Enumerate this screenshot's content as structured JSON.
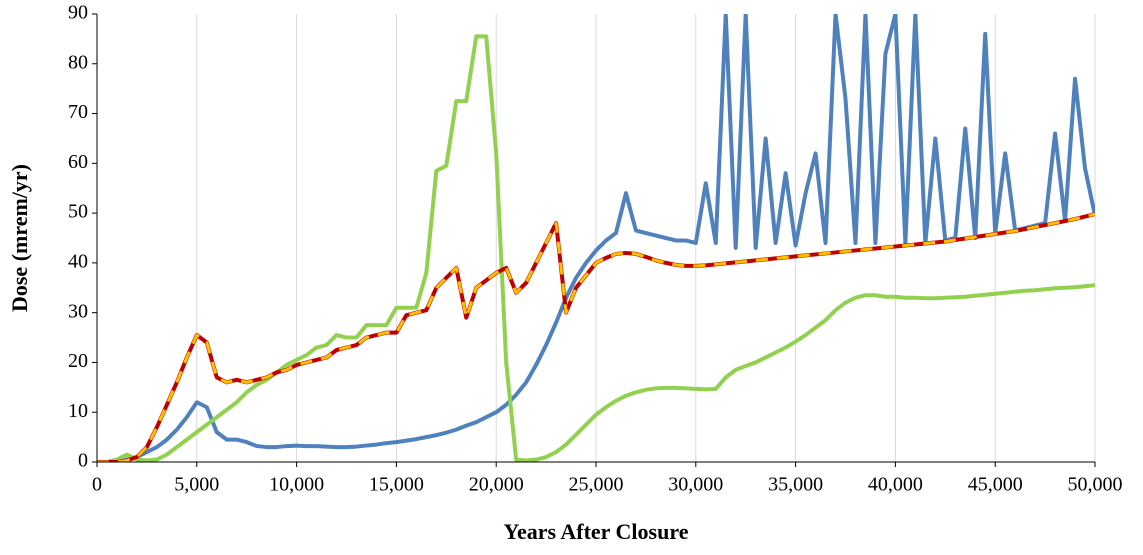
{
  "chart_data": {
    "type": "line",
    "xlabel": "Years After Closure",
    "ylabel": "Dose (mrem/yr)",
    "x": [
      0,
      500,
      1000,
      1500,
      2000,
      2500,
      3000,
      3500,
      4000,
      4500,
      5000,
      5500,
      6000,
      6500,
      7000,
      7500,
      8000,
      8500,
      9000,
      9500,
      10000,
      10500,
      11000,
      11500,
      12000,
      12500,
      13000,
      13500,
      14000,
      14500,
      15000,
      15500,
      16000,
      16500,
      17000,
      17500,
      18000,
      18500,
      19000,
      19500,
      20000,
      20500,
      21000,
      21500,
      22000,
      22500,
      23000,
      23500,
      24000,
      24500,
      25000,
      25500,
      26000,
      26500,
      27000,
      27500,
      28000,
      28500,
      29000,
      29500,
      30000,
      30500,
      31000,
      31500,
      32000,
      32500,
      33000,
      33500,
      34000,
      34500,
      35000,
      35500,
      36000,
      36500,
      37000,
      37500,
      38000,
      38500,
      39000,
      39500,
      40000,
      40500,
      41000,
      41500,
      42000,
      42500,
      43000,
      43500,
      44000,
      44500,
      45000,
      45500,
      46000,
      46500,
      47000,
      47500,
      48000,
      48500,
      49000,
      49500,
      50000
    ],
    "series": [
      {
        "color": "#4f81bd",
        "values": [
          0,
          0,
          0,
          0.5,
          1,
          2,
          3,
          4.5,
          6.5,
          9,
          12,
          11,
          6,
          4.5,
          4.5,
          4,
          3.2,
          3,
          3,
          3.2,
          3.3,
          3.2,
          3.2,
          3.1,
          3,
          3,
          3.1,
          3.3,
          3.5,
          3.8,
          4,
          4.3,
          4.6,
          5,
          5.4,
          5.9,
          6.5,
          7.3,
          8,
          9,
          10,
          11.5,
          13.5,
          16,
          19.5,
          23.5,
          28,
          33,
          37,
          40,
          42.5,
          44.5,
          46,
          54,
          46.5,
          46,
          45.5,
          45,
          44.5,
          44.5,
          44,
          56,
          44,
          90,
          43,
          90,
          43,
          65,
          44,
          58,
          43.5,
          54,
          62,
          44,
          90,
          73,
          44,
          90,
          44,
          82,
          90,
          44,
          90,
          44,
          65,
          44.5,
          45,
          67,
          45,
          86,
          46,
          62,
          46.5,
          47,
          47.5,
          48,
          66,
          48.5,
          77,
          59,
          49.5
        ]
      },
      {
        "color": "#92d050",
        "values": [
          0,
          0,
          0.5,
          1.5,
          0.5,
          0.3,
          0.5,
          1.5,
          3,
          4.5,
          6,
          7.5,
          9,
          10.5,
          12,
          14,
          15.5,
          16.5,
          18,
          19.5,
          20.5,
          21.5,
          23,
          23.5,
          25.5,
          25,
          25,
          27.5,
          27.5,
          27.5,
          31,
          31,
          31,
          38,
          58.5,
          59.5,
          72.5,
          72.5,
          85.5,
          85.5,
          62,
          20,
          0.5,
          0.3,
          0.5,
          1,
          2,
          3.5,
          5.5,
          7.5,
          9.5,
          11,
          12.3,
          13.3,
          14,
          14.5,
          14.8,
          14.9,
          14.9,
          14.8,
          14.7,
          14.6,
          14.7,
          17,
          18.5,
          19.3,
          20,
          21,
          22,
          23,
          24.2,
          25.5,
          27,
          28.5,
          30.5,
          32,
          33,
          33.5,
          33.5,
          33.2,
          33.2,
          33,
          33,
          32.9,
          32.9,
          33,
          33.1,
          33.2,
          33.4,
          33.6,
          33.8,
          34,
          34.2,
          34.4,
          34.5,
          34.7,
          34.9,
          35,
          35.1,
          35.3,
          35.5
        ]
      },
      {
        "color": "#c00000",
        "values": [
          0,
          0,
          0,
          0.3,
          1,
          3,
          7,
          11.5,
          16,
          21,
          25.5,
          24,
          17,
          16,
          16.5,
          16,
          16.5,
          17,
          18,
          18.5,
          19.5,
          20,
          20.5,
          21,
          22.5,
          23,
          23.5,
          25,
          25.5,
          26,
          26,
          29.5,
          30,
          30.5,
          35,
          37,
          39,
          29,
          35,
          36.5,
          38,
          39,
          34,
          36,
          40,
          44,
          48,
          30,
          35,
          37.5,
          40,
          41,
          41.8,
          42,
          41.8,
          41.2,
          40.5,
          40,
          39.6,
          39.4,
          39.4,
          39.5,
          39.7,
          39.9,
          40.1,
          40.3,
          40.5,
          40.7,
          40.9,
          41.1,
          41.3,
          41.5,
          41.7,
          41.9,
          42.1,
          42.3,
          42.5,
          42.7,
          42.9,
          43.1,
          43.3,
          43.5,
          43.7,
          43.9,
          44.1,
          44.3,
          44.6,
          44.9,
          45.2,
          45.5,
          45.8,
          46.1,
          46.4,
          46.8,
          47.2,
          47.6,
          48,
          48.4,
          48.8,
          49.3,
          49.8
        ]
      },
      {
        "color": "#ffc000",
        "dashed": true,
        "values": [
          0,
          0,
          0,
          0.3,
          1,
          3,
          7,
          11.5,
          16,
          21,
          25.5,
          24,
          17,
          16,
          16.5,
          16,
          16.5,
          17,
          18,
          18.5,
          19.5,
          20,
          20.5,
          21,
          22.5,
          23,
          23.5,
          25,
          25.5,
          26,
          26,
          29.5,
          30,
          30.5,
          35,
          37,
          39,
          29,
          35,
          36.5,
          38,
          39,
          34,
          36,
          40,
          44,
          48,
          30,
          35,
          37.5,
          40,
          41,
          41.8,
          42,
          41.8,
          41.2,
          40.5,
          40,
          39.6,
          39.4,
          39.4,
          39.5,
          39.7,
          39.9,
          40.1,
          40.3,
          40.5,
          40.7,
          40.9,
          41.1,
          41.3,
          41.5,
          41.7,
          41.9,
          42.1,
          42.3,
          42.5,
          42.7,
          42.9,
          43.1,
          43.3,
          43.5,
          43.7,
          43.9,
          44.1,
          44.3,
          44.6,
          44.9,
          45.2,
          45.5,
          45.8,
          46.1,
          46.4,
          46.8,
          47.2,
          47.6,
          48,
          48.4,
          48.8,
          49.3,
          49.8
        ]
      }
    ],
    "xlim": [
      0,
      50000
    ],
    "xticks": [
      0,
      {
        "value": 5000,
        "label": "5,000"
      },
      {
        "value": 10000,
        "label": "10,000"
      },
      {
        "value": 15000,
        "label": "15,000"
      },
      {
        "value": 20000,
        "label": "20,000"
      },
      {
        "value": 25000,
        "label": "25,000"
      },
      {
        "value": 30000,
        "label": "30,000"
      },
      {
        "value": 35000,
        "label": "35,000"
      },
      {
        "value": 40000,
        "label": "40,000"
      },
      {
        "value": 45000,
        "label": "45,000"
      },
      {
        "value": 50000,
        "label": "50,000"
      }
    ],
    "ylim": [
      0,
      90
    ],
    "yticks": [
      0,
      10,
      20,
      30,
      40,
      50,
      60,
      70,
      80,
      90
    ],
    "grid": "x"
  }
}
